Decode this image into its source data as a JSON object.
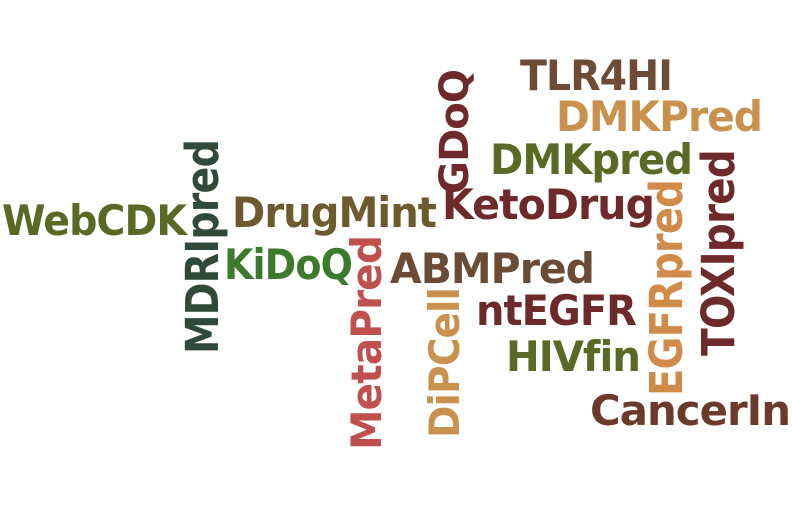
{
  "words": [
    {
      "text": "WebCDK",
      "color": "#5a6a24",
      "orientation": "horizontal"
    },
    {
      "text": "DrugMint",
      "color": "#6d5b2e",
      "orientation": "horizontal"
    },
    {
      "text": "KiDoQ",
      "color": "#3e7a2c",
      "orientation": "horizontal"
    },
    {
      "text": "MDRIpred",
      "color": "#2f4a3a",
      "orientation": "vertical"
    },
    {
      "text": "MetaPred",
      "color": "#c0504d",
      "orientation": "vertical"
    },
    {
      "text": "DiPCell",
      "color": "#c8914e",
      "orientation": "vertical"
    },
    {
      "text": "ABMPred",
      "color": "#6b4b35",
      "orientation": "horizontal"
    },
    {
      "text": "GDoQ",
      "color": "#6e2a2a",
      "orientation": "vertical"
    },
    {
      "text": "KetoDrug",
      "color": "#6e2a2a",
      "orientation": "horizontal"
    },
    {
      "text": "TLR4HI",
      "color": "#6d4b35",
      "orientation": "horizontal"
    },
    {
      "text": "DMKPred",
      "color": "#c8914e",
      "orientation": "horizontal"
    },
    {
      "text": "DMKpred",
      "color": "#5a6a24",
      "orientation": "horizontal"
    },
    {
      "text": "ntEGFR",
      "color": "#6e2a2a",
      "orientation": "horizontal"
    },
    {
      "text": "HIVfin",
      "color": "#5a6a24",
      "orientation": "horizontal"
    },
    {
      "text": "EGFRpred",
      "color": "#d08a4a",
      "orientation": "vertical"
    },
    {
      "text": "TOXIpred",
      "color": "#6e2a2a",
      "orientation": "vertical"
    },
    {
      "text": "CancerIn",
      "color": "#6b3a2a",
      "orientation": "horizontal"
    }
  ]
}
